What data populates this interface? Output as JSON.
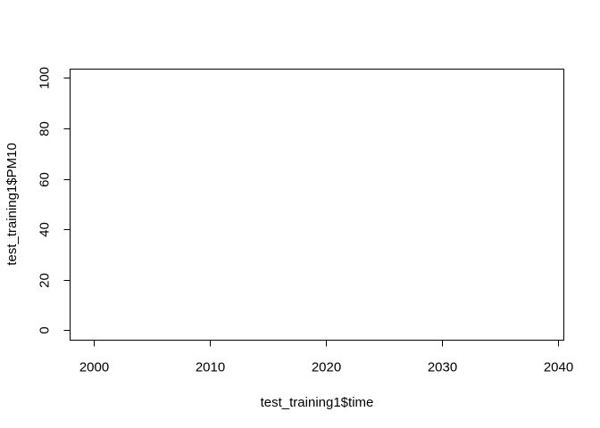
{
  "chart_data": {
    "type": "scatter",
    "title": "",
    "xlabel": "test_training1$time",
    "ylabel": "test_training1$PM10",
    "xlim": [
      1998,
      2040.5
    ],
    "ylim": [
      -4,
      103.5
    ],
    "x_ticks": [
      2000,
      2010,
      2020,
      2030,
      2040
    ],
    "x_tick_labels": [
      "2000",
      "2010",
      "2020",
      "2030",
      "2040"
    ],
    "y_ticks": [
      0,
      20,
      40,
      60,
      80,
      100
    ],
    "y_tick_labels": [
      "0",
      "20",
      "40",
      "60",
      "80",
      "100"
    ],
    "grid": false,
    "series": [
      {
        "x": [],
        "y": []
      }
    ],
    "colors": {
      "foreground": "#000000",
      "background": "#ffffff"
    }
  }
}
